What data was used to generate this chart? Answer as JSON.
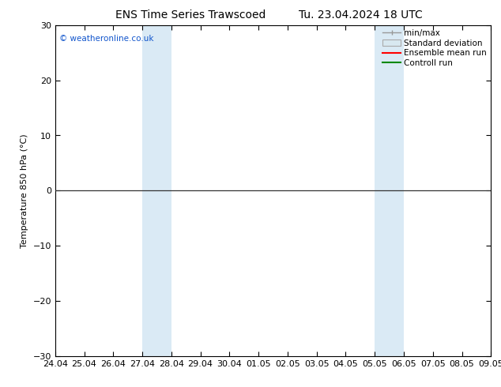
{
  "title_left": "ENS Time Series Trawscoed",
  "title_right": "Tu. 23.04.2024 18 UTC",
  "ylabel": "Temperature 850 hPa (°C)",
  "watermark": "© weatheronline.co.uk",
  "ylim": [
    -30,
    30
  ],
  "yticks": [
    -30,
    -20,
    -10,
    0,
    10,
    20,
    30
  ],
  "x_labels": [
    "24.04",
    "25.04",
    "26.04",
    "27.04",
    "28.04",
    "29.04",
    "30.04",
    "01.05",
    "02.05",
    "03.05",
    "04.05",
    "05.05",
    "06.05",
    "07.05",
    "08.05",
    "09.05"
  ],
  "shaded_bands": [
    {
      "xstart": 3,
      "xend": 4
    },
    {
      "xstart": 11,
      "xend": 12
    }
  ],
  "hline_y": 0,
  "legend_labels": [
    "min/max",
    "Standard deviation",
    "Ensemble mean run",
    "Controll run"
  ],
  "legend_colors": [
    "#999999",
    "#d8e8f0",
    "#ff0000",
    "#008800"
  ],
  "background_color": "#ffffff",
  "plot_bg_color": "#ffffff",
  "shade_color": "#daeaf5",
  "title_fontsize": 10,
  "label_fontsize": 8,
  "tick_fontsize": 8,
  "watermark_color": "#1155cc"
}
